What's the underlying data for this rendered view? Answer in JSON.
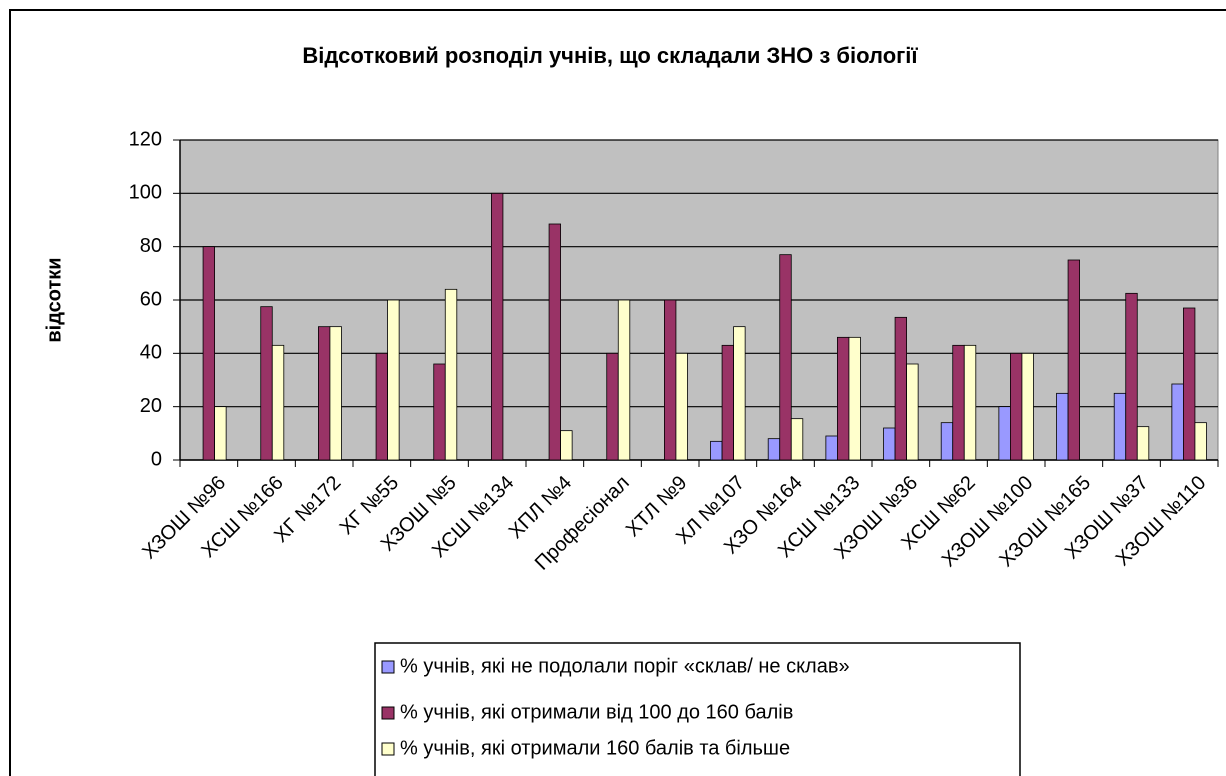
{
  "chart_data": {
    "type": "bar",
    "title": "Відсотковий розподіл учнів, що складали ЗНО з біології",
    "y_label": "відсотки",
    "categories": [
      "ХЗОШ №96",
      "ХСШ №166",
      "ХГ №172",
      "ХГ №55",
      "ХЗОШ №5",
      "ХСШ №134",
      "ХПЛ №4",
      "Професіонал",
      "ХТЛ №9",
      "ХЛ №107",
      "ХЗО №164",
      "ХСШ №133",
      "ХЗОШ №36",
      "ХСШ №62",
      "ХЗОШ №100",
      "ХЗОШ №165",
      "ХЗОШ №37",
      "ХЗОШ №110"
    ],
    "series": [
      {
        "name": "% учнів, які  не подолали поріг «склав/ не склав»",
        "color": "#9999ff",
        "values": [
          0,
          0,
          0,
          0,
          0,
          0,
          0,
          0,
          0,
          7,
          8,
          9,
          12,
          14,
          20,
          25,
          25,
          28.5
        ]
      },
      {
        "name": "% учнів, які отримали від 100 до 160 балів",
        "color": "#993366",
        "values": [
          80,
          57.5,
          50,
          40,
          36,
          100,
          88.5,
          40,
          60,
          43,
          77,
          46,
          53.5,
          43,
          40,
          75,
          62.5,
          57
        ]
      },
      {
        "name": "% учнів, які  отримали 160 балів та більше",
        "color": "#ffffcc",
        "values": [
          20,
          43,
          50,
          60,
          64,
          0,
          11,
          60,
          40,
          50,
          15.5,
          46,
          36,
          43,
          40,
          0,
          12.5,
          14
        ]
      }
    ],
    "ylim": [
      0,
      120
    ],
    "yticks": [
      0,
      20,
      40,
      60,
      80,
      100,
      120
    ],
    "grid": true,
    "plot_background": "#c0c0c0"
  }
}
